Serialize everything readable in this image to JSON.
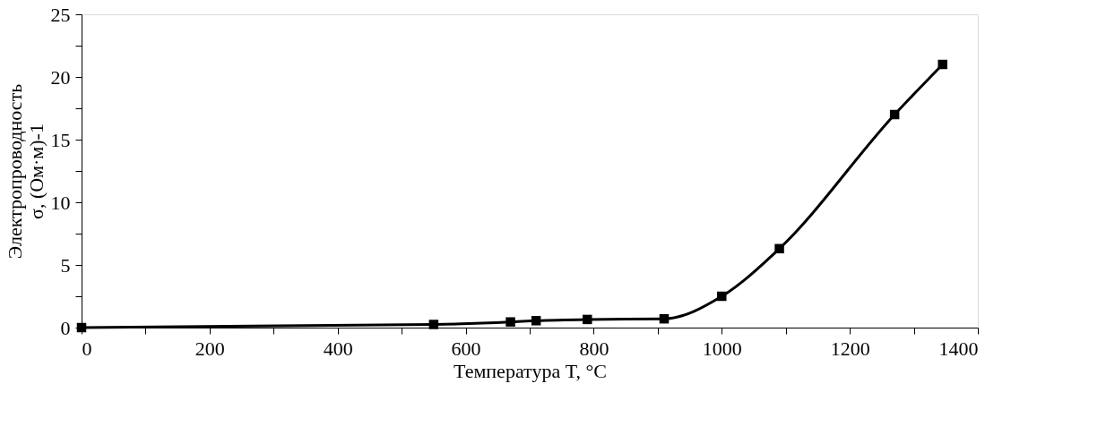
{
  "chart_data": {
    "type": "line",
    "xlabel": "Температура T, °C",
    "ylabel": "Электропроводность\nσ, (Ом·м)-1",
    "x": [
      0,
      550,
      670,
      710,
      790,
      910,
      1000,
      1090,
      1270,
      1345
    ],
    "series": [
      {
        "color": "#000000",
        "values": [
          0,
          0.25,
          0.45,
          0.55,
          0.65,
          0.7,
          2.5,
          6.3,
          17,
          21
        ]
      }
    ],
    "xlim": [
      0,
      1400
    ],
    "xticks": [
      0,
      {
        "value": 100,
        "label": null
      },
      200,
      {
        "value": 300,
        "label": null
      },
      400,
      {
        "value": 500,
        "label": null
      },
      600,
      {
        "value": 700,
        "label": null
      },
      800,
      {
        "value": 900,
        "label": null
      },
      1000,
      {
        "value": 1100,
        "label": null
      },
      1200,
      {
        "value": 1300,
        "label": null
      },
      1400
    ],
    "ylim": [
      0,
      25
    ],
    "yticks": [
      0,
      {
        "value": 2.5,
        "label": null
      },
      5,
      {
        "value": 7.5,
        "label": null
      },
      10,
      {
        "value": 12.5,
        "label": null
      },
      15,
      {
        "value": 17.5,
        "label": null
      },
      20,
      {
        "value": 22.5,
        "label": null
      },
      25
    ],
    "grid": false,
    "legend": false,
    "marker": "square",
    "line_style": "solid"
  }
}
